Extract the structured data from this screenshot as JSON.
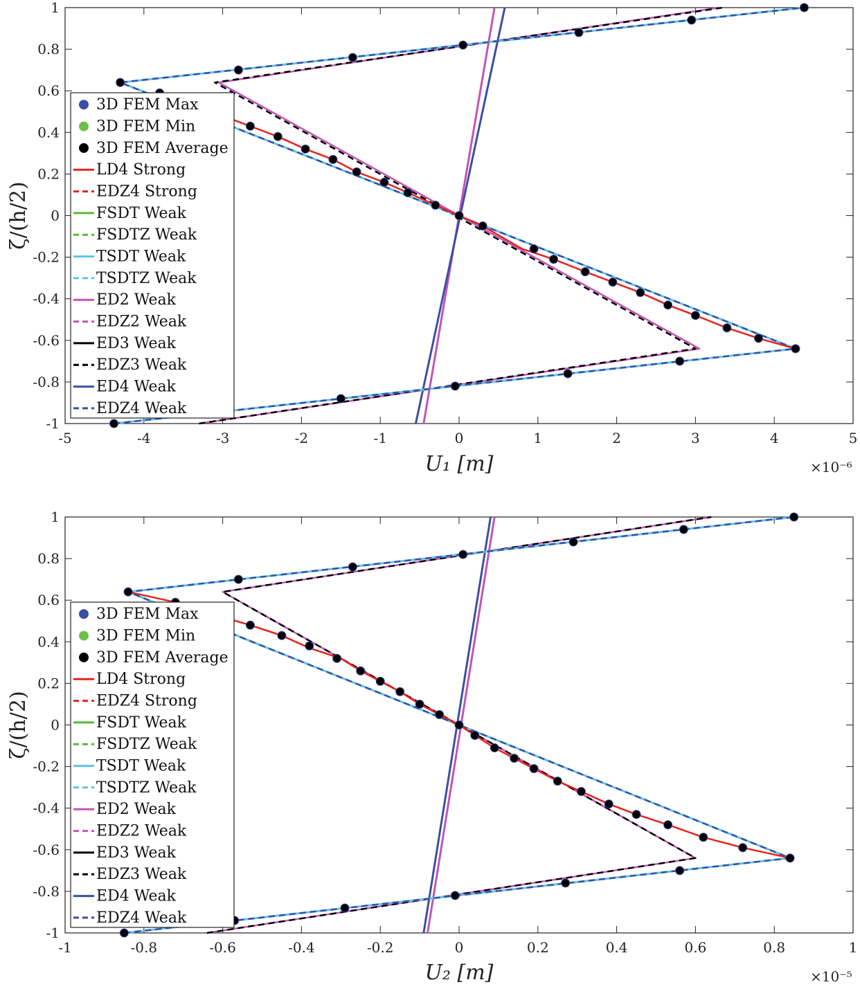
{
  "chart_data": [
    {
      "type": "line",
      "name": "top",
      "xlabel": "U₁  [m]",
      "ylabel": "ζ/(h/2)",
      "exponent_label": "×10⁻⁶",
      "xlim": [
        -5,
        5
      ],
      "ylim": [
        -1,
        1
      ],
      "xticks": [
        -5,
        -4,
        -3,
        -2,
        -1,
        0,
        1,
        2,
        3,
        4,
        5
      ],
      "xtick_labels": [
        "-5",
        "-4",
        "-3",
        "-2",
        "-1",
        "0",
        "1",
        "2",
        "3",
        "4",
        "5"
      ],
      "yticks": [
        1,
        0.8,
        0.6,
        0.4,
        0.2,
        0,
        -0.2,
        -0.4,
        -0.6,
        -0.8,
        -1
      ],
      "ytick_labels": [
        "1",
        "0.8",
        "0.6",
        "0.4",
        "0.2",
        "0",
        "-0.2",
        "-0.4",
        "-0.6",
        "-0.8",
        "-1"
      ],
      "grid": false,
      "legend_position": "center-left",
      "legend": [
        {
          "label": "3D FEM Max",
          "color": "#3b4ea5",
          "style": "dot"
        },
        {
          "label": "3D FEM Min",
          "color": "#6cc04a",
          "style": "dot"
        },
        {
          "label": "3D FEM Average",
          "color": "#000000",
          "style": "dot"
        },
        {
          "label": "LD4 Strong",
          "color": "#e8221c",
          "style": "solid"
        },
        {
          "label": "EDZ4 Strong",
          "color": "#e8221c",
          "style": "dash"
        },
        {
          "label": "FSDT Weak",
          "color": "#5ab83a",
          "style": "solid"
        },
        {
          "label": "FSDTZ Weak",
          "color": "#5ab83a",
          "style": "dash"
        },
        {
          "label": "TSDT Weak",
          "color": "#5ec3e6",
          "style": "solid"
        },
        {
          "label": "TSDTZ Weak",
          "color": "#5ec3e6",
          "style": "dash"
        },
        {
          "label": "ED2 Weak",
          "color": "#c254b5",
          "style": "solid"
        },
        {
          "label": "EDZ2 Weak",
          "color": "#c254b5",
          "style": "dash"
        },
        {
          "label": "ED3 Weak",
          "color": "#000000",
          "style": "solid"
        },
        {
          "label": "EDZ3 Weak",
          "color": "#000000",
          "style": "dash"
        },
        {
          "label": "ED4 Weak",
          "color": "#3b4ea5",
          "style": "solid"
        },
        {
          "label": "EDZ4 Weak",
          "color": "#3b4ea5",
          "style": "dash"
        }
      ],
      "series": [
        {
          "name": "ED2 Weak",
          "color": "#c254b5",
          "dash": false,
          "width": 3,
          "x": [
            -0.45,
            0.45
          ],
          "y": [
            -1,
            1
          ]
        },
        {
          "name": "ED4 Weak",
          "color": "#3b4ea5",
          "dash": false,
          "width": 3,
          "x": [
            -0.55,
            0.58
          ],
          "y": [
            -1,
            1
          ]
        },
        {
          "name": "EDZ2 Weak",
          "color": "#c254b5",
          "dash": false,
          "width": 2.5,
          "x": [
            -3.3,
            3.05,
            -3.05,
            3.3
          ],
          "y": [
            -1,
            -0.64,
            0.64,
            1
          ]
        },
        {
          "name": "EDZ3 Weak",
          "color": "#000000",
          "dash": true,
          "width": 2.5,
          "x": [
            -3.3,
            3.0,
            -3.1,
            3.35
          ],
          "y": [
            -1,
            -0.64,
            0.64,
            1
          ]
        },
        {
          "name": "TSDTZ Weak",
          "color": "#5ec3e6",
          "dash": false,
          "width": 3,
          "x": [
            -4.38,
            4.27,
            -4.3,
            4.38
          ],
          "y": [
            -1,
            -0.64,
            0.64,
            1
          ]
        },
        {
          "name": "EDZ4 Weak",
          "color": "#3b4ea5",
          "dash": true,
          "width": 2.5,
          "x": [
            -4.38,
            4.27,
            -4.3,
            4.38
          ],
          "y": [
            -1,
            -0.64,
            0.64,
            1
          ]
        },
        {
          "name": "LD4 Strong",
          "color": "#e8221c",
          "dash": false,
          "width": 2.5,
          "x": [
            4.27,
            3.8,
            3.4,
            3.0,
            2.65,
            2.3,
            1.95,
            1.6,
            1.2,
            0.8,
            0.3,
            0,
            -0.3,
            -0.65,
            -0.95,
            -1.3,
            -1.6,
            -1.95,
            -2.3,
            -2.65,
            -3.0
          ],
          "y": [
            -0.64,
            -0.59,
            -0.54,
            -0.48,
            -0.43,
            -0.37,
            -0.32,
            -0.27,
            -0.21,
            -0.16,
            -0.05,
            0,
            0.05,
            0.11,
            0.16,
            0.21,
            0.27,
            0.32,
            0.38,
            0.43,
            0.48
          ]
        }
      ],
      "points": {
        "x": [
          4.38,
          2.95,
          1.52,
          0.05,
          -1.35,
          -2.8,
          -4.3,
          -3.8,
          -2.65,
          -2.3,
          -1.95,
          -1.6,
          -1.3,
          -0.95,
          -0.65,
          -0.3,
          0,
          0.3,
          0.95,
          1.2,
          1.6,
          1.95,
          2.3,
          2.65,
          3.0,
          3.4,
          3.8,
          4.27,
          2.8,
          1.38,
          -0.05,
          -1.5,
          -4.38
        ],
        "y": [
          1,
          0.94,
          0.88,
          0.82,
          0.76,
          0.7,
          0.64,
          0.59,
          0.43,
          0.38,
          0.32,
          0.27,
          0.21,
          0.16,
          0.11,
          0.05,
          0,
          -0.05,
          -0.16,
          -0.21,
          -0.27,
          -0.32,
          -0.37,
          -0.43,
          -0.48,
          -0.54,
          -0.59,
          -0.64,
          -0.7,
          -0.76,
          -0.82,
          -0.88,
          -1
        ]
      }
    },
    {
      "type": "line",
      "name": "bottom",
      "xlabel": "U₂  [m]",
      "ylabel": "ζ/(h/2)",
      "exponent_label": "×10⁻⁵",
      "xlim": [
        -1,
        1
      ],
      "ylim": [
        -1,
        1
      ],
      "xticks": [
        -1,
        -0.8,
        -0.6,
        -0.4,
        -0.2,
        0,
        0.2,
        0.4,
        0.6,
        0.8,
        1
      ],
      "xtick_labels": [
        "-1",
        "-0.8",
        "-0.6",
        "-0.4",
        "-0.2",
        "0",
        "0.2",
        "0.4",
        "0.6",
        "0.8",
        "1"
      ],
      "yticks": [
        1,
        0.8,
        0.6,
        0.4,
        0.2,
        0,
        -0.2,
        -0.4,
        -0.6,
        -0.8,
        -1
      ],
      "ytick_labels": [
        "1",
        "0.8",
        "0.6",
        "0.4",
        "0.2",
        "0",
        "-0.2",
        "-0.4",
        "-0.6",
        "-0.8",
        "-1"
      ],
      "grid": false,
      "legend_position": "center-left",
      "legend": [
        {
          "label": "3D FEM Max",
          "color": "#3b4ea5",
          "style": "dot"
        },
        {
          "label": "3D FEM Min",
          "color": "#6cc04a",
          "style": "dot"
        },
        {
          "label": "3D FEM Average",
          "color": "#000000",
          "style": "dot"
        },
        {
          "label": "LD4 Strong",
          "color": "#e8221c",
          "style": "solid"
        },
        {
          "label": "EDZ4 Strong",
          "color": "#e8221c",
          "style": "dash"
        },
        {
          "label": "FSDT Weak",
          "color": "#5ab83a",
          "style": "solid"
        },
        {
          "label": "FSDTZ Weak",
          "color": "#5ab83a",
          "style": "dash"
        },
        {
          "label": "TSDT Weak",
          "color": "#5ec3e6",
          "style": "solid"
        },
        {
          "label": "TSDTZ Weak",
          "color": "#5ec3e6",
          "style": "dash"
        },
        {
          "label": "ED2 Weak",
          "color": "#c254b5",
          "style": "solid"
        },
        {
          "label": "EDZ2 Weak",
          "color": "#c254b5",
          "style": "dash"
        },
        {
          "label": "ED3 Weak",
          "color": "#000000",
          "style": "solid"
        },
        {
          "label": "EDZ3 Weak",
          "color": "#000000",
          "style": "dash"
        },
        {
          "label": "ED4 Weak",
          "color": "#3b4ea5",
          "style": "solid"
        },
        {
          "label": "EDZ4 Weak",
          "color": "#3b4ea5",
          "style": "dash"
        }
      ],
      "series": [
        {
          "name": "ED2 Weak",
          "color": "#c254b5",
          "dash": false,
          "width": 3,
          "x": [
            -0.08,
            0.09
          ],
          "y": [
            -1,
            1
          ]
        },
        {
          "name": "ED4 Weak",
          "color": "#3b4ea5",
          "dash": false,
          "width": 3,
          "x": [
            -0.09,
            0.08
          ],
          "y": [
            -1,
            1
          ]
        },
        {
          "name": "EDZ2 Weak",
          "color": "#c254b5",
          "dash": false,
          "width": 2.5,
          "x": [
            -0.64,
            0.6,
            -0.6,
            0.64
          ],
          "y": [
            -1,
            -0.64,
            0.64,
            1
          ]
        },
        {
          "name": "EDZ3 Weak",
          "color": "#000000",
          "dash": true,
          "width": 2.5,
          "x": [
            -0.64,
            0.6,
            -0.6,
            0.64
          ],
          "y": [
            -1,
            -0.64,
            0.64,
            1
          ]
        },
        {
          "name": "TSDTZ Weak",
          "color": "#5ec3e6",
          "dash": false,
          "width": 3,
          "x": [
            -0.85,
            0.84,
            -0.84,
            0.85
          ],
          "y": [
            -1,
            -0.64,
            0.64,
            1
          ]
        },
        {
          "name": "EDZ4 Weak",
          "color": "#3b4ea5",
          "dash": true,
          "width": 2.5,
          "x": [
            -0.85,
            0.84,
            -0.84,
            0.85
          ],
          "y": [
            -1,
            -0.64,
            0.64,
            1
          ]
        },
        {
          "name": "LD4 Strong",
          "color": "#e8221c",
          "dash": false,
          "width": 2.5,
          "x": [
            0.84,
            0.72,
            0.62,
            0.53,
            0.45,
            0.38,
            0.31,
            0.25,
            0.19,
            0.14,
            0.09,
            0.04,
            0,
            -0.05,
            -0.1,
            -0.15,
            -0.2,
            -0.25,
            -0.3,
            -0.38,
            -0.45,
            -0.53,
            -0.62,
            -0.72,
            -0.84
          ],
          "y": [
            -0.64,
            -0.59,
            -0.54,
            -0.48,
            -0.43,
            -0.38,
            -0.32,
            -0.27,
            -0.21,
            -0.16,
            -0.11,
            -0.05,
            0,
            0.05,
            0.1,
            0.16,
            0.21,
            0.26,
            0.32,
            0.37,
            0.43,
            0.48,
            0.53,
            0.59,
            0.64
          ]
        }
      ],
      "points": {
        "x": [
          0.85,
          0.57,
          0.29,
          0.01,
          -0.27,
          -0.56,
          -0.84,
          -0.72,
          -0.53,
          -0.45,
          -0.38,
          -0.31,
          -0.25,
          -0.2,
          -0.15,
          -0.1,
          -0.05,
          0,
          0.04,
          0.09,
          0.14,
          0.19,
          0.25,
          0.31,
          0.38,
          0.45,
          0.53,
          0.62,
          0.72,
          0.84,
          0.56,
          0.27,
          -0.01,
          -0.29,
          -0.57,
          -0.85
        ],
        "y": [
          1,
          0.94,
          0.88,
          0.82,
          0.76,
          0.7,
          0.64,
          0.59,
          0.48,
          0.43,
          0.38,
          0.32,
          0.26,
          0.21,
          0.16,
          0.1,
          0.05,
          0,
          -0.05,
          -0.11,
          -0.16,
          -0.21,
          -0.27,
          -0.32,
          -0.38,
          -0.43,
          -0.48,
          -0.54,
          -0.59,
          -0.64,
          -0.7,
          -0.76,
          -0.82,
          -0.88,
          -0.94,
          -1
        ]
      }
    }
  ]
}
